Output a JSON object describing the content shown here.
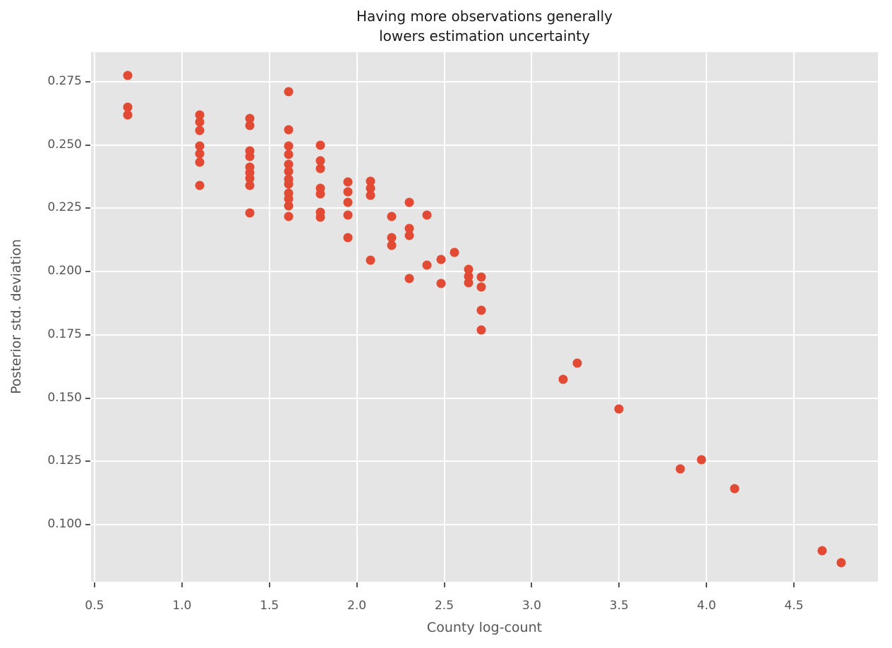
{
  "chart_data": {
    "type": "scatter",
    "title": "Having more observations generally\nlowers estimation uncertainty",
    "xlabel": "County log-count",
    "ylabel": "Posterior std. deviation",
    "xlim": [
      0.48,
      4.98
    ],
    "ylim": [
      0.0774,
      0.2867
    ],
    "grid": true,
    "legend": "none",
    "xticks": {
      "values": [
        0.5,
        1.0,
        1.5,
        2.0,
        2.5,
        3.0,
        3.5,
        4.0,
        4.5
      ],
      "labels": [
        "0.5",
        "1.0",
        "1.5",
        "2.0",
        "2.5",
        "3.0",
        "3.5",
        "4.0",
        "4.5"
      ]
    },
    "yticks": {
      "values": [
        0.1,
        0.125,
        0.15,
        0.175,
        0.2,
        0.225,
        0.25,
        0.275
      ],
      "labels": [
        "0.100",
        "0.125",
        "0.150",
        "0.175",
        "0.200",
        "0.225",
        "0.250",
        "0.275"
      ]
    },
    "style": {
      "plot_background": "#e5e5e5",
      "figure_background": "#ffffff",
      "grid_color": "#ffffff",
      "marker_color": "#e24a33",
      "tick_color": "#555555",
      "tick_label_color": "#555555",
      "axis_label_color": "#555555",
      "title_color": "#1a1a1a",
      "marker_diameter_px": 13
    },
    "points": [
      [
        0.69,
        0.2775
      ],
      [
        0.69,
        0.265
      ],
      [
        0.69,
        0.2618
      ],
      [
        1.1,
        0.2619
      ],
      [
        1.1,
        0.2591
      ],
      [
        1.1,
        0.2557
      ],
      [
        1.1,
        0.2496
      ],
      [
        1.1,
        0.2466
      ],
      [
        1.1,
        0.2433
      ],
      [
        1.1,
        0.234
      ],
      [
        1.39,
        0.2604
      ],
      [
        1.39,
        0.2577
      ],
      [
        1.39,
        0.2478
      ],
      [
        1.39,
        0.2455
      ],
      [
        1.39,
        0.2413
      ],
      [
        1.39,
        0.239
      ],
      [
        1.39,
        0.2367
      ],
      [
        1.39,
        0.2339
      ],
      [
        1.39,
        0.2232
      ],
      [
        1.61,
        0.2712
      ],
      [
        1.61,
        0.256
      ],
      [
        1.61,
        0.2497
      ],
      [
        1.61,
        0.2462
      ],
      [
        1.61,
        0.2423
      ],
      [
        1.61,
        0.2396
      ],
      [
        1.61,
        0.2364
      ],
      [
        1.61,
        0.2345
      ],
      [
        1.61,
        0.2309
      ],
      [
        1.61,
        0.2286
      ],
      [
        1.61,
        0.2259
      ],
      [
        1.61,
        0.2218
      ],
      [
        1.79,
        0.2499
      ],
      [
        1.79,
        0.2438
      ],
      [
        1.79,
        0.2408
      ],
      [
        1.79,
        0.2329
      ],
      [
        1.79,
        0.2308
      ],
      [
        1.79,
        0.2234
      ],
      [
        1.79,
        0.2215
      ],
      [
        1.95,
        0.2355
      ],
      [
        1.95,
        0.2315
      ],
      [
        1.95,
        0.2273
      ],
      [
        1.95,
        0.2222
      ],
      [
        1.95,
        0.2135
      ],
      [
        2.08,
        0.2358
      ],
      [
        2.08,
        0.233
      ],
      [
        2.08,
        0.2302
      ],
      [
        2.08,
        0.2046
      ],
      [
        2.2,
        0.2218
      ],
      [
        2.2,
        0.2134
      ],
      [
        2.2,
        0.2102
      ],
      [
        2.3,
        0.2274
      ],
      [
        2.3,
        0.2169
      ],
      [
        2.3,
        0.2143
      ],
      [
        2.3,
        0.1972
      ],
      [
        2.4,
        0.2223
      ],
      [
        2.4,
        0.2025
      ],
      [
        2.48,
        0.2048
      ],
      [
        2.48,
        0.1954
      ],
      [
        2.56,
        0.2075
      ],
      [
        2.64,
        0.201
      ],
      [
        2.64,
        0.1982
      ],
      [
        2.64,
        0.1955
      ],
      [
        2.71,
        0.1978
      ],
      [
        2.71,
        0.194
      ],
      [
        2.71,
        0.1848
      ],
      [
        2.71,
        0.177
      ],
      [
        3.18,
        0.1575
      ],
      [
        3.26,
        0.1637
      ],
      [
        3.5,
        0.1458
      ],
      [
        3.85,
        0.122
      ],
      [
        3.97,
        0.1256
      ],
      [
        4.16,
        0.1142
      ],
      [
        4.66,
        0.0896
      ],
      [
        4.77,
        0.0849
      ]
    ]
  }
}
